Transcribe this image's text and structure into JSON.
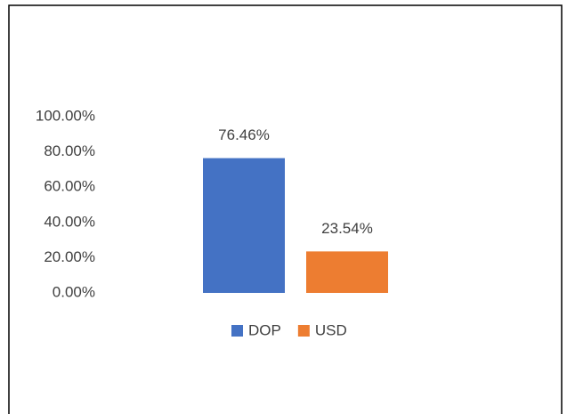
{
  "chart_data": {
    "type": "bar",
    "categories": [
      null
    ],
    "series": [
      {
        "name": "DOP",
        "color": "#4472c4",
        "values": [
          76.46
        ],
        "value_labels": [
          "76.46%"
        ]
      },
      {
        "name": "USD",
        "color": "#ed7d31",
        "values": [
          23.54
        ],
        "value_labels": [
          "23.54%"
        ]
      }
    ],
    "ylim": [
      0,
      100
    ],
    "yticks": [
      {
        "value": 0,
        "label": "0.00%"
      },
      {
        "value": 20,
        "label": "20.00%"
      },
      {
        "value": 40,
        "label": "40.00%"
      },
      {
        "value": 60,
        "label": "60.00%"
      },
      {
        "value": 80,
        "label": "80.00%"
      },
      {
        "value": 100,
        "label": "100.00%"
      }
    ],
    "grid": false,
    "legend": "bottom"
  }
}
